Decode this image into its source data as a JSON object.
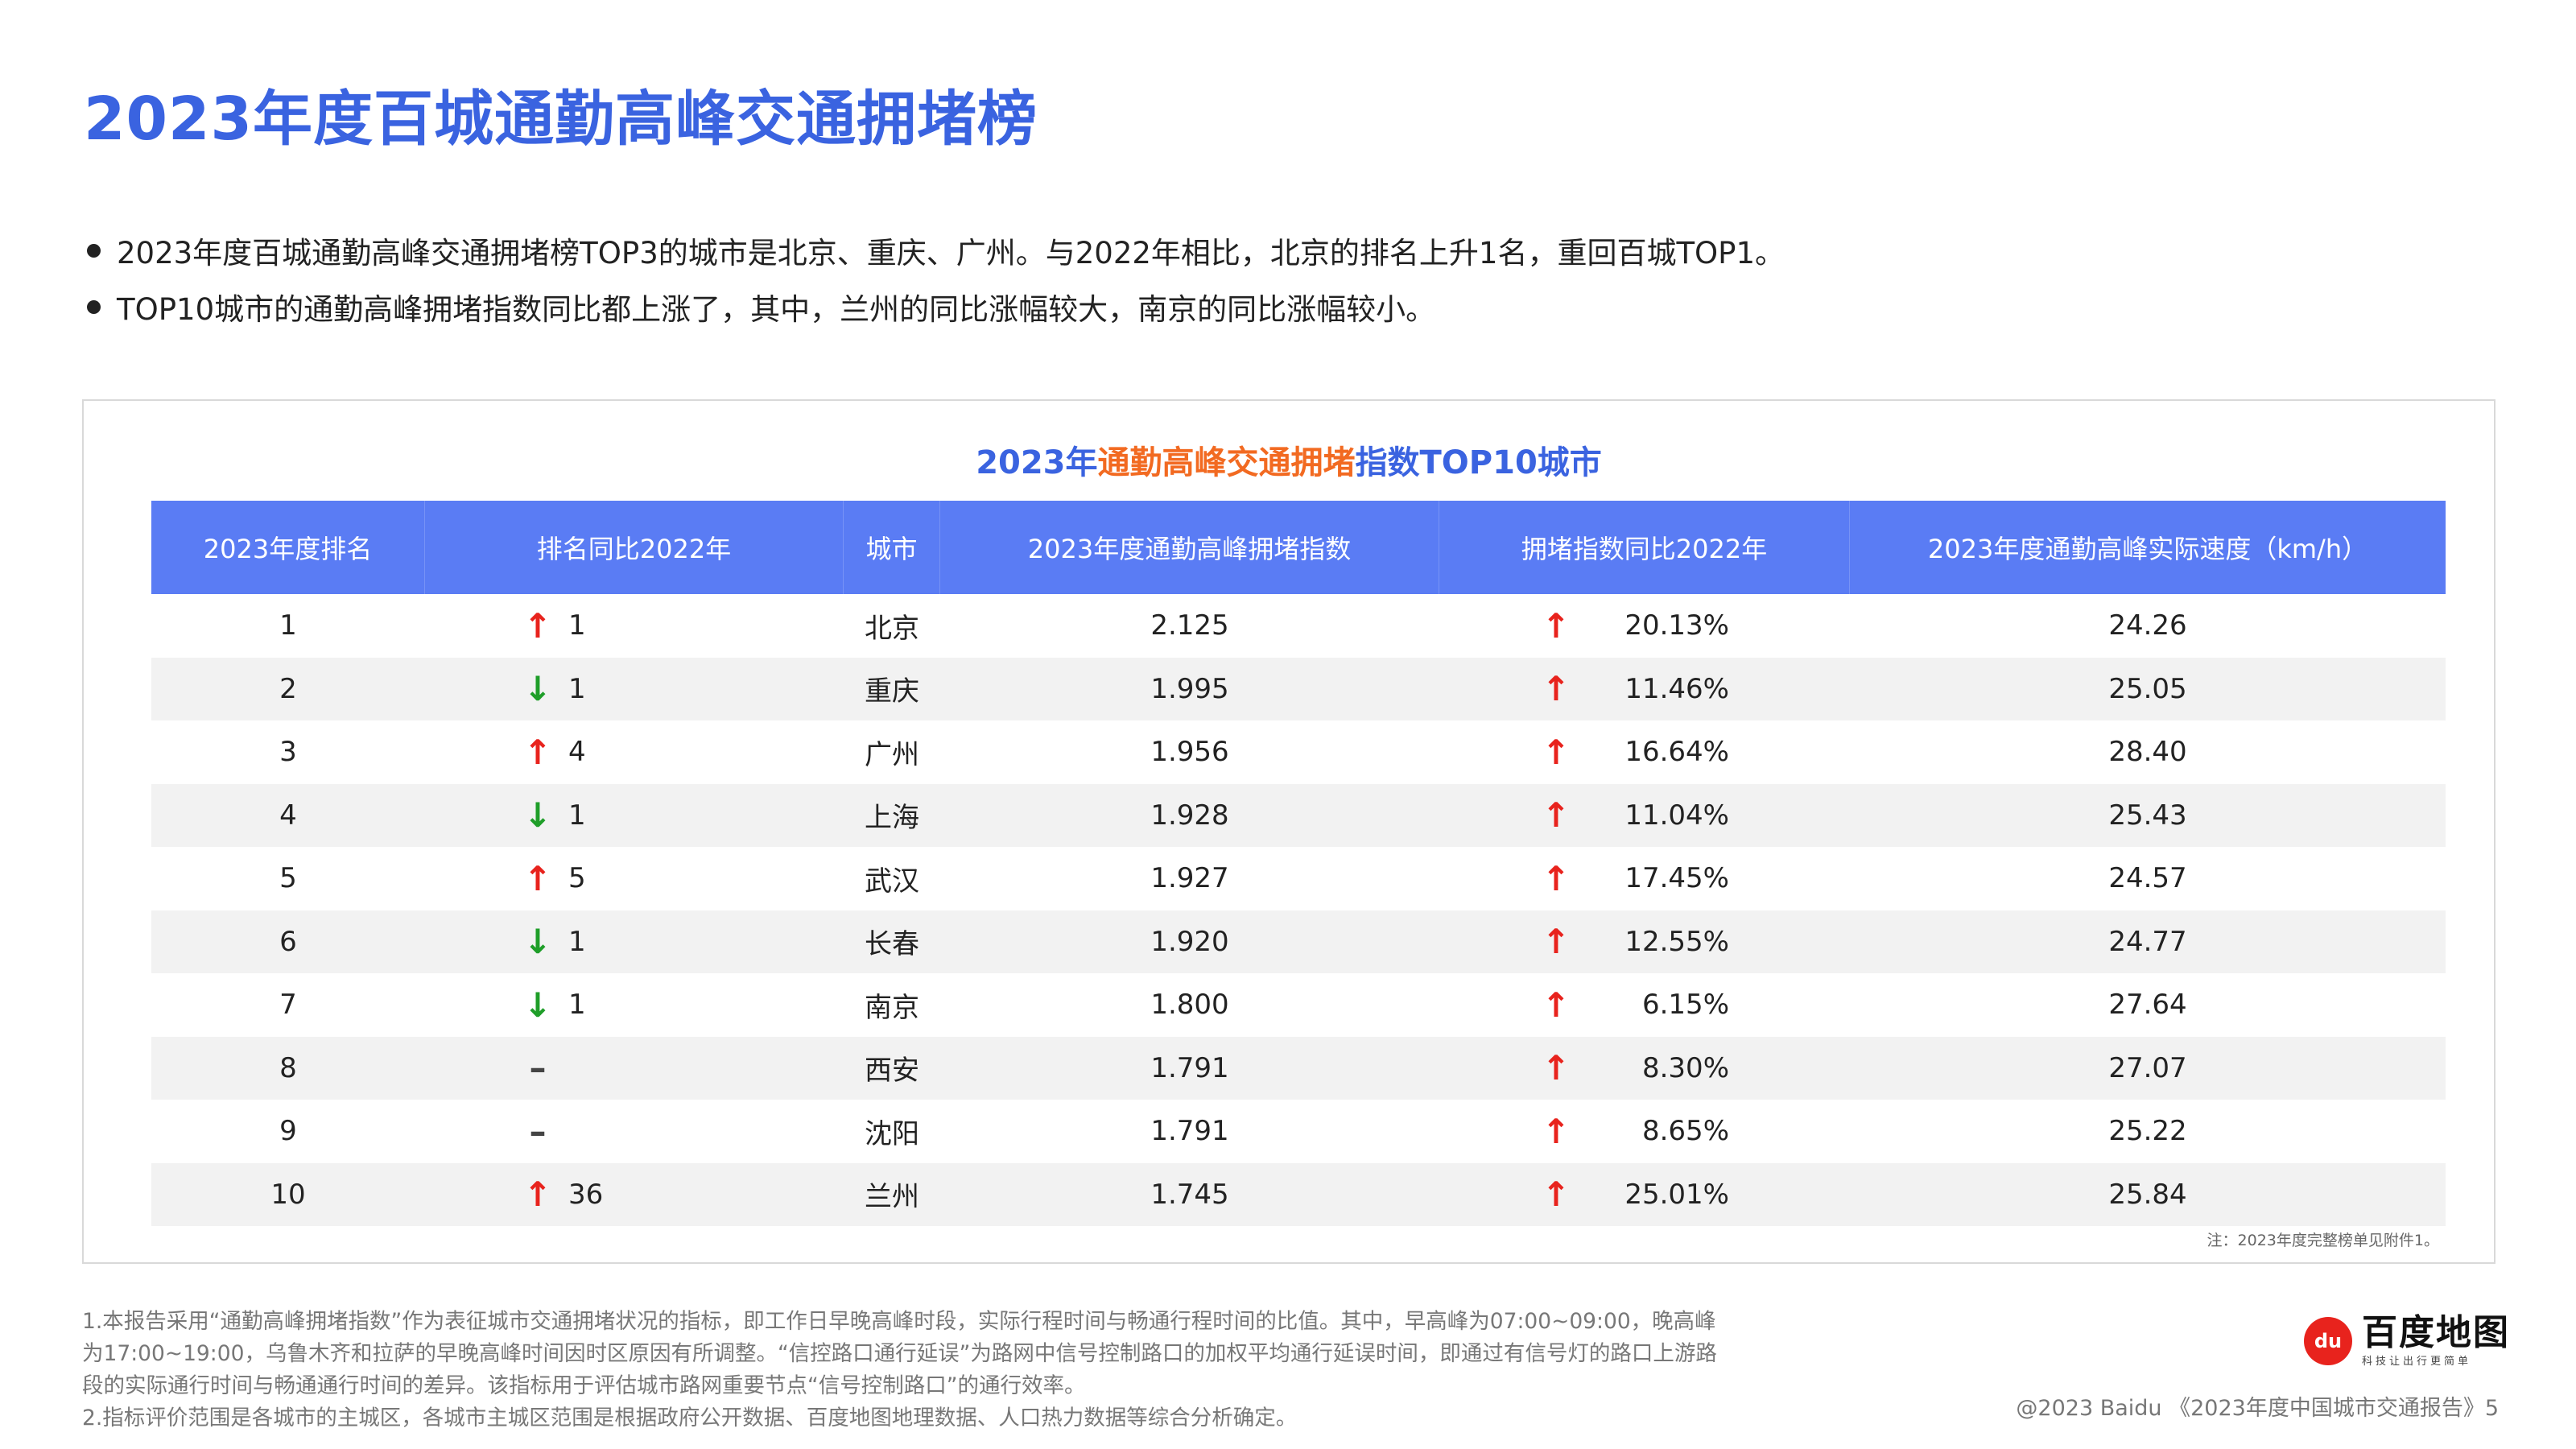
{
  "page": {
    "title": "2023年度百城通勤高峰交通拥堵榜",
    "bullets": [
      "2023年度百城通勤高峰交通拥堵榜TOP3的城市是北京、重庆、广州。与2022年相比，北京的排名上升1名，重回百城TOP1。",
      "TOP10城市的通勤高峰拥堵指数同比都上涨了，其中，兰州的同比涨幅较大，南京的同比涨幅较小。"
    ]
  },
  "table": {
    "title_part1": "2023年",
    "title_part2": "通勤高峰交通拥堵",
    "title_part3": "指数TOP10城市",
    "headers": [
      "2023年度排名",
      "排名同比2022年",
      "城市",
      "2023年度通勤高峰拥堵指数",
      "拥堵指数同比2022年",
      "2023年度通勤高峰实际速度（km/h）"
    ],
    "rows": [
      {
        "rank": "1",
        "change_dir": "up",
        "change_icon": "↑",
        "change": "1",
        "city": "北京",
        "index": "2.125",
        "yoy_icon": "↑",
        "yoy": "20.13%",
        "speed": "24.26"
      },
      {
        "rank": "2",
        "change_dir": "down",
        "change_icon": "↓",
        "change": "1",
        "city": "重庆",
        "index": "1.995",
        "yoy_icon": "↑",
        "yoy": "11.46%",
        "speed": "25.05"
      },
      {
        "rank": "3",
        "change_dir": "up",
        "change_icon": "↑",
        "change": "4",
        "city": "广州",
        "index": "1.956",
        "yoy_icon": "↑",
        "yoy": "16.64%",
        "speed": "28.40"
      },
      {
        "rank": "4",
        "change_dir": "down",
        "change_icon": "↓",
        "change": "1",
        "city": "上海",
        "index": "1.928",
        "yoy_icon": "↑",
        "yoy": "11.04%",
        "speed": "25.43"
      },
      {
        "rank": "5",
        "change_dir": "up",
        "change_icon": "↑",
        "change": "5",
        "city": "武汉",
        "index": "1.927",
        "yoy_icon": "↑",
        "yoy": "17.45%",
        "speed": "24.57"
      },
      {
        "rank": "6",
        "change_dir": "down",
        "change_icon": "↓",
        "change": "1",
        "city": "长春",
        "index": "1.920",
        "yoy_icon": "↑",
        "yoy": "12.55%",
        "speed": "24.77"
      },
      {
        "rank": "7",
        "change_dir": "down",
        "change_icon": "↓",
        "change": "1",
        "city": "南京",
        "index": "1.800",
        "yoy_icon": "↑",
        "yoy": "6.15%",
        "speed": "27.64"
      },
      {
        "rank": "8",
        "change_dir": "flat",
        "change_icon": "–",
        "change": "",
        "city": "西安",
        "index": "1.791",
        "yoy_icon": "↑",
        "yoy": "8.30%",
        "speed": "27.07"
      },
      {
        "rank": "9",
        "change_dir": "flat",
        "change_icon": "–",
        "change": "",
        "city": "沈阳",
        "index": "1.791",
        "yoy_icon": "↑",
        "yoy": "8.65%",
        "speed": "25.22"
      },
      {
        "rank": "10",
        "change_dir": "up",
        "change_icon": "↑",
        "change": "36",
        "city": "兰州",
        "index": "1.745",
        "yoy_icon": "↑",
        "yoy": "25.01%",
        "speed": "25.84"
      }
    ],
    "note": "注：2023年度完整榜单见附件1。"
  },
  "footnotes": [
    "1.本报告采用“通勤高峰拥堵指数”作为表征城市交通拥堵状况的指标，即工作日早晚高峰时段，实际行程时间与畅通行程时间的比值。其中，早高峰为07:00~09:00，晚高峰",
    "为17:00~19:00，乌鲁木齐和拉萨的早晚高峰时间因时区原因有所调整。“信控路口通行延误”为路网中信号控制路口的加权平均通行延误时间，即通过有信号灯的路口上游路",
    "段的实际通行时间与畅通通行时间的差异。该指标用于评估城市路网重要节点“信号控制路口”的通行效率。",
    "2.指标评价范围是各城市的主城区，各城市主城区范围是根据政府公开数据、百度地图地理数据、人口热力数据等综合分析确定。"
  ],
  "logo": {
    "mark": "du",
    "name": "百度地图",
    "slogan": "科技让出行更简单"
  },
  "copyright": "@2023 Baidu 《2023年度中国城市交通报告》5",
  "colors": {
    "title_blue": "#3a63e0",
    "header_blue": "#5a7cf4",
    "orange": "#f26a21",
    "up_red": "#e8231d",
    "down_green": "#1f9e29"
  }
}
